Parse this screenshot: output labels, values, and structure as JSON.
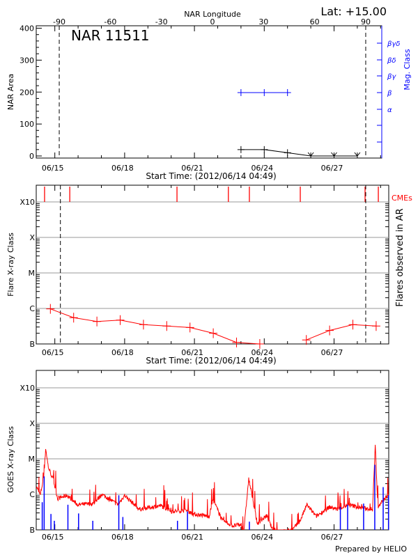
{
  "header": {
    "lat_label": "Lat: +15.00",
    "region_label": "NAR 11511",
    "prepared_by": "Prepared by HELIO"
  },
  "chart_data": [
    {
      "type": "line",
      "xlabel": "Start Time: (2012/06/14 04:49)",
      "ylabel": "NAR Area",
      "ylabel_right": "Mag. Class",
      "top_axis_label": "NAR Longitude",
      "top_ticks": [
        "-90",
        "-60",
        "-30",
        "0",
        "30",
        "60",
        "90"
      ],
      "top_tick_values": [
        -90,
        -60,
        -30,
        0,
        30,
        60,
        90
      ],
      "x_tick_labels": [
        "06/15",
        "06/18",
        "06/21",
        "06/24",
        "06/27"
      ],
      "x_tick_dates": [
        "2012-06-15T00:00",
        "2012-06-18T00:00",
        "2012-06-21T00:00",
        "2012-06-24T00:00",
        "2012-06-27T00:00"
      ],
      "y_ticks": [
        "0",
        "100",
        "200",
        "300",
        "400"
      ],
      "ylim": [
        0,
        400
      ],
      "right_ticks": [
        "α",
        "β",
        "βγ",
        "βδ",
        "βγδ"
      ],
      "limb_longitudes": [
        -90,
        90
      ],
      "series": [
        {
          "name": "",
          "color": "#000000",
          "points": [
            [
              "2012-06-23T00:00",
              20
            ],
            [
              "2012-06-24T00:00",
              20
            ],
            [
              "2012-06-25T00:00",
              10
            ],
            [
              "2012-06-26T00:00",
              0
            ],
            [
              "2012-06-27T00:00",
              0
            ],
            [
              "2012-06-28T00:00",
              0
            ]
          ]
        },
        {
          "name": "",
          "color": "#0000ff",
          "points": [
            [
              "2012-06-23T00:00",
              "β"
            ],
            [
              "2012-06-24T00:00",
              "β"
            ],
            [
              "2012-06-25T00:00",
              "β"
            ]
          ]
        }
      ]
    },
    {
      "type": "line",
      "xlabel": "Start Time: (2012/06/14 04:49)",
      "ylabel": "Flare X-ray Class",
      "ylabel_right": "Flares observed in AR",
      "cme_label": "CMEs",
      "x_tick_labels": [
        "06/15",
        "06/18",
        "06/21",
        "06/24",
        "06/27"
      ],
      "y_ticks": [
        "B",
        "C",
        "M",
        "X",
        "X10"
      ],
      "y_scale": "log",
      "ylim": [
        1e-07,
        0.001
      ],
      "grid": true,
      "color": "#ff0000",
      "cmes": [
        "2012-06-14T13:25",
        "2012-06-15T15:25",
        "2012-06-20T06:00",
        "2012-06-22T11:00",
        "2012-06-23T08:40",
        "2012-06-25T13:10",
        "2012-06-28T08:00",
        "2012-06-28T21:40"
      ],
      "points": [
        [
          "2012-06-14T19:25",
          9.7e-07
        ],
        [
          "2012-06-15T19:25",
          5.5e-07
        ],
        [
          "2012-06-16T19:25",
          4.3e-07
        ],
        [
          "2012-06-17T19:25",
          4.7e-07
        ],
        [
          "2012-06-18T19:25",
          3.5e-07
        ],
        [
          "2012-06-19T19:25",
          3.2e-07
        ],
        [
          "2012-06-20T19:25",
          2.9e-07
        ],
        [
          "2012-06-21T19:25",
          2e-07
        ],
        [
          "2012-06-22T19:25",
          1.1e-07
        ],
        [
          "2012-06-23T19:25",
          1e-07
        ],
        [
          "2012-06-24T19:25",
          null
        ],
        [
          "2012-06-25T19:25",
          1.3e-07
        ],
        [
          "2012-06-26T19:25",
          2.4e-07
        ],
        [
          "2012-06-27T19:25",
          3.5e-07
        ],
        [
          "2012-06-28T19:25",
          3.2e-07
        ]
      ]
    },
    {
      "type": "line",
      "ylabel": "GOES X-ray Class",
      "x_tick_labels": [
        "06/15",
        "06/18",
        "06/21",
        "06/24",
        "06/27"
      ],
      "y_ticks": [
        "B",
        "C",
        "M",
        "X",
        "X10"
      ],
      "y_scale": "log",
      "ylim": [
        1e-07,
        0.001
      ],
      "grid": true,
      "series": [
        {
          "name": "",
          "color": "#ff0000",
          "points": [
            [
              "2012-06-14T04:49",
              1.7e-06
            ],
            [
              "2012-06-14T09:00",
              9.4e-07
            ],
            [
              "2012-06-14T13:00",
              3.7e-06
            ],
            [
              "2012-06-14T14:30",
              2e-05
            ],
            [
              "2012-06-14T17:20",
              5.8e-06
            ],
            [
              "2012-06-14T22:50",
              2.3e-06
            ],
            [
              "2012-06-15T03:00",
              7.5e-07
            ],
            [
              "2012-06-15T12:30",
              9.4e-07
            ],
            [
              "2012-06-15T23:30",
              5.1e-07
            ],
            [
              "2012-06-16T16:00",
              5.5e-07
            ],
            [
              "2012-06-17T00:30",
              1e-06
            ],
            [
              "2012-06-17T17:00",
              5.1e-07
            ],
            [
              "2012-06-18T00:00",
              9.4e-07
            ],
            [
              "2012-06-18T15:10",
              3.8e-07
            ],
            [
              "2012-06-19T13:10",
              4.8e-07
            ],
            [
              "2012-06-20T00:20",
              3.3e-07
            ],
            [
              "2012-06-20T16:50",
              3.5e-07
            ],
            [
              "2012-06-20T22:20",
              2.8e-07
            ],
            [
              "2012-06-21T15:10",
              2.4e-07
            ],
            [
              "2012-06-21T19:10",
              7.2e-07
            ],
            [
              "2012-06-22T04:50",
              1.8e-07
            ],
            [
              "2012-06-22T15:50",
              1.3e-07
            ],
            [
              "2012-06-22T22:50",
              1.4e-07
            ],
            [
              "2012-06-23T03:00",
              9.8e-08
            ],
            [
              "2012-06-23T08:00",
              2.7e-06
            ],
            [
              "2012-06-23T11:20",
              9.4e-07
            ],
            [
              "2012-06-23T16:50",
              1.5e-07
            ],
            [
              "2012-06-24T02:30",
              2.5e-07
            ],
            [
              "2012-06-24T08:00",
              1.1e-07
            ],
            [
              "2012-06-24T12:20",
              8.3e-08
            ],
            [
              "2012-06-25T04:50",
              9.8e-08
            ],
            [
              "2012-06-25T13:00",
              1.8e-07
            ],
            [
              "2012-06-25T20:00",
              5.1e-07
            ],
            [
              "2012-06-26T05:30",
              2.4e-07
            ],
            [
              "2012-06-26T19:30",
              4.4e-07
            ],
            [
              "2012-06-27T03:40",
              3.8e-07
            ],
            [
              "2012-06-27T14:40",
              5.1e-07
            ],
            [
              "2012-06-28T04:30",
              4.1e-07
            ],
            [
              "2012-06-28T15:40",
              3.8e-07
            ],
            [
              "2012-06-28T18:30",
              2.4e-05
            ],
            [
              "2012-06-28T21:10",
              4.4e-07
            ],
            [
              "2012-06-29T02:40",
              6.9e-07
            ],
            [
              "2012-06-29T08:10",
              9.4e-07
            ]
          ]
        },
        {
          "name": "",
          "color": "#0000ff",
          "points": [
            [
              "2012-06-14T11:00",
              6e-07
            ],
            [
              "2012-06-14T13:00",
              3.2e-06
            ],
            [
              "2012-06-14T20:00",
              2.8e-07
            ],
            [
              "2012-06-14T23:30",
              1.8e-07
            ],
            [
              "2012-06-15T13:30",
              5.1e-07
            ],
            [
              "2012-06-16T00:30",
              2.9e-07
            ],
            [
              "2012-06-16T15:10",
              1.8e-07
            ],
            [
              "2012-06-17T18:00",
              9.4e-07
            ],
            [
              "2012-06-17T22:10",
              2.3e-07
            ],
            [
              "2012-06-20T06:30",
              1.8e-07
            ],
            [
              "2012-06-20T16:50",
              3.3e-07
            ],
            [
              "2012-06-23T08:40",
              1.7e-07
            ],
            [
              "2012-06-27T06:30",
              4.4e-07
            ],
            [
              "2012-06-27T14:00",
              5.1e-07
            ],
            [
              "2012-06-28T06:30",
              5.5e-07
            ],
            [
              "2012-06-28T18:00",
              6.8e-06
            ],
            [
              "2012-06-29T02:40",
              1.6e-06
            ],
            [
              "2012-06-29T08:10",
              9.4e-07
            ]
          ]
        }
      ]
    }
  ]
}
